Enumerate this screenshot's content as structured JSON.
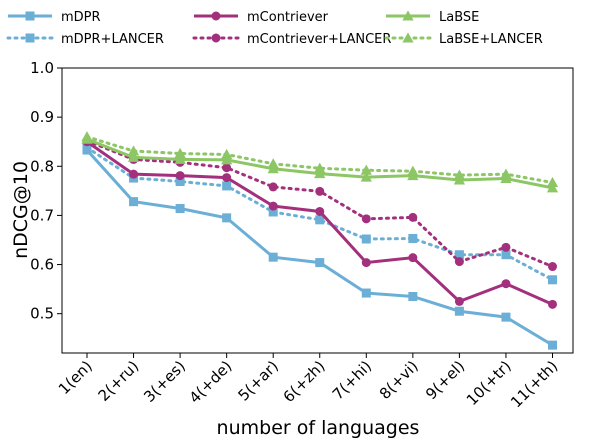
{
  "chart_data": {
    "type": "line",
    "title": "",
    "xlabel": "number of languages",
    "ylabel": "nDCG@10",
    "categories": [
      "1(en)",
      "2(+ru)",
      "3(+es)",
      "4(+de)",
      "5(+ar)",
      "6(+zh)",
      "7(+hi)",
      "8(+vi)",
      "9(+el)",
      "10(+tr)",
      "11(+th)"
    ],
    "ylim": [
      0.42,
      1.0
    ],
    "yticks": [
      "0.5",
      "0.6",
      "0.7",
      "0.8",
      "0.9",
      "1.0"
    ],
    "grid": false,
    "legend_position": "top",
    "series": [
      {
        "name": "mDPR",
        "color": "#6baed6",
        "marker": "square",
        "dashed": false,
        "values": [
          0.833,
          0.728,
          0.714,
          0.695,
          0.615,
          0.604,
          0.542,
          0.535,
          0.505,
          0.493,
          0.436
        ]
      },
      {
        "name": "mDPR+LANCER",
        "color": "#6baed6",
        "marker": "square",
        "dashed": true,
        "values": [
          0.838,
          0.776,
          0.769,
          0.76,
          0.707,
          0.691,
          0.652,
          0.653,
          0.62,
          0.62,
          0.569
        ]
      },
      {
        "name": "mContriever",
        "color": "#a3307c",
        "marker": "circle",
        "dashed": false,
        "values": [
          0.85,
          0.784,
          0.781,
          0.777,
          0.719,
          0.708,
          0.604,
          0.614,
          0.525,
          0.561,
          0.519
        ]
      },
      {
        "name": "mContriever+LANCER",
        "color": "#a3307c",
        "marker": "circle",
        "dashed": true,
        "values": [
          0.852,
          0.814,
          0.808,
          0.797,
          0.758,
          0.749,
          0.693,
          0.696,
          0.606,
          0.635,
          0.596
        ]
      },
      {
        "name": "LaBSE",
        "color": "#8cc665",
        "marker": "triangle",
        "dashed": false,
        "values": [
          0.855,
          0.818,
          0.814,
          0.813,
          0.795,
          0.785,
          0.778,
          0.781,
          0.772,
          0.775,
          0.756
        ]
      },
      {
        "name": "LaBSE+LANCER",
        "color": "#8cc665",
        "marker": "triangle",
        "dashed": true,
        "values": [
          0.86,
          0.831,
          0.826,
          0.824,
          0.805,
          0.796,
          0.792,
          0.79,
          0.782,
          0.784,
          0.767
        ]
      }
    ]
  }
}
